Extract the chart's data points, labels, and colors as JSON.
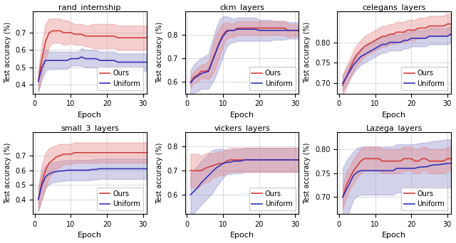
{
  "subplots": [
    {
      "title": "rand_internship",
      "ours_mean": [
        0.42,
        0.55,
        0.65,
        0.7,
        0.71,
        0.71,
        0.71,
        0.7,
        0.7,
        0.7,
        0.69,
        0.69,
        0.69,
        0.68,
        0.68,
        0.68,
        0.68,
        0.68,
        0.68,
        0.68,
        0.68,
        0.68,
        0.67,
        0.67,
        0.67,
        0.67,
        0.67,
        0.67,
        0.67,
        0.67,
        0.67
      ],
      "ours_std": [
        0.06,
        0.09,
        0.1,
        0.08,
        0.07,
        0.07,
        0.07,
        0.07,
        0.07,
        0.06,
        0.06,
        0.06,
        0.06,
        0.06,
        0.06,
        0.07,
        0.07,
        0.07,
        0.07,
        0.07,
        0.07,
        0.07,
        0.07,
        0.07,
        0.07,
        0.07,
        0.07,
        0.07,
        0.07,
        0.07,
        0.07
      ],
      "unif_mean": [
        0.42,
        0.5,
        0.54,
        0.54,
        0.54,
        0.54,
        0.54,
        0.54,
        0.54,
        0.55,
        0.55,
        0.55,
        0.56,
        0.55,
        0.55,
        0.55,
        0.55,
        0.54,
        0.54,
        0.54,
        0.54,
        0.54,
        0.53,
        0.53,
        0.53,
        0.53,
        0.53,
        0.53,
        0.53,
        0.53,
        0.53
      ],
      "unif_std": [
        0.06,
        0.07,
        0.06,
        0.05,
        0.05,
        0.05,
        0.05,
        0.05,
        0.05,
        0.04,
        0.04,
        0.04,
        0.05,
        0.05,
        0.05,
        0.05,
        0.05,
        0.05,
        0.05,
        0.05,
        0.05,
        0.05,
        0.05,
        0.05,
        0.05,
        0.05,
        0.05,
        0.05,
        0.05,
        0.05,
        0.05
      ],
      "ylim": [
        0.35,
        0.82
      ],
      "yticks": [
        0.4,
        0.5,
        0.6,
        0.7
      ]
    },
    {
      "title": "ckm_layers",
      "ours_mean": [
        0.6,
        0.62,
        0.63,
        0.645,
        0.645,
        0.65,
        0.69,
        0.73,
        0.77,
        0.8,
        0.82,
        0.82,
        0.82,
        0.83,
        0.83,
        0.83,
        0.83,
        0.83,
        0.83,
        0.83,
        0.83,
        0.83,
        0.83,
        0.83,
        0.83,
        0.83,
        0.83,
        0.82,
        0.82,
        0.82,
        0.82
      ],
      "ours_std": [
        0.025,
        0.025,
        0.03,
        0.03,
        0.03,
        0.04,
        0.06,
        0.07,
        0.06,
        0.05,
        0.035,
        0.03,
        0.03,
        0.03,
        0.03,
        0.03,
        0.03,
        0.03,
        0.03,
        0.03,
        0.03,
        0.03,
        0.03,
        0.03,
        0.03,
        0.03,
        0.03,
        0.03,
        0.025,
        0.025,
        0.025
      ],
      "unif_mean": [
        0.595,
        0.615,
        0.625,
        0.635,
        0.64,
        0.645,
        0.685,
        0.725,
        0.765,
        0.795,
        0.815,
        0.82,
        0.82,
        0.825,
        0.825,
        0.825,
        0.825,
        0.825,
        0.825,
        0.82,
        0.82,
        0.82,
        0.82,
        0.82,
        0.82,
        0.82,
        0.82,
        0.82,
        0.82,
        0.82,
        0.82
      ],
      "unif_std": [
        0.055,
        0.06,
        0.065,
        0.065,
        0.07,
        0.075,
        0.09,
        0.1,
        0.1,
        0.085,
        0.065,
        0.055,
        0.05,
        0.05,
        0.05,
        0.05,
        0.05,
        0.05,
        0.05,
        0.045,
        0.045,
        0.045,
        0.045,
        0.04,
        0.04,
        0.04,
        0.04,
        0.035,
        0.035,
        0.035,
        0.035
      ],
      "ylim": [
        0.55,
        0.9
      ],
      "yticks": [
        0.6,
        0.7,
        0.8
      ]
    },
    {
      "title": "celegans_layers",
      "ours_mean": [
        0.695,
        0.715,
        0.735,
        0.755,
        0.77,
        0.78,
        0.79,
        0.795,
        0.8,
        0.805,
        0.81,
        0.815,
        0.815,
        0.82,
        0.82,
        0.825,
        0.825,
        0.825,
        0.83,
        0.83,
        0.83,
        0.835,
        0.835,
        0.835,
        0.84,
        0.84,
        0.84,
        0.84,
        0.84,
        0.845,
        0.845
      ],
      "ours_std": [
        0.025,
        0.025,
        0.025,
        0.025,
        0.025,
        0.025,
        0.025,
        0.025,
        0.025,
        0.025,
        0.025,
        0.025,
        0.025,
        0.025,
        0.025,
        0.025,
        0.025,
        0.025,
        0.025,
        0.025,
        0.025,
        0.025,
        0.025,
        0.025,
        0.025,
        0.025,
        0.025,
        0.025,
        0.025,
        0.025,
        0.025
      ],
      "unif_mean": [
        0.7,
        0.715,
        0.73,
        0.745,
        0.755,
        0.765,
        0.77,
        0.775,
        0.78,
        0.785,
        0.79,
        0.795,
        0.795,
        0.8,
        0.8,
        0.8,
        0.8,
        0.805,
        0.805,
        0.81,
        0.81,
        0.81,
        0.81,
        0.81,
        0.815,
        0.815,
        0.815,
        0.815,
        0.815,
        0.815,
        0.82
      ],
      "unif_std": [
        0.02,
        0.02,
        0.02,
        0.02,
        0.02,
        0.02,
        0.02,
        0.02,
        0.02,
        0.02,
        0.02,
        0.02,
        0.02,
        0.02,
        0.02,
        0.02,
        0.02,
        0.02,
        0.02,
        0.02,
        0.02,
        0.02,
        0.02,
        0.02,
        0.02,
        0.02,
        0.02,
        0.02,
        0.02,
        0.02,
        0.02
      ],
      "ylim": [
        0.675,
        0.875
      ],
      "yticks": [
        0.7,
        0.75,
        0.8
      ]
    },
    {
      "title": "small_3_layers",
      "ours_mean": [
        0.4,
        0.52,
        0.6,
        0.65,
        0.67,
        0.69,
        0.7,
        0.71,
        0.71,
        0.71,
        0.72,
        0.72,
        0.72,
        0.72,
        0.72,
        0.72,
        0.72,
        0.72,
        0.72,
        0.72,
        0.72,
        0.72,
        0.72,
        0.72,
        0.72,
        0.72,
        0.72,
        0.72,
        0.72,
        0.72,
        0.72
      ],
      "ours_std": [
        0.08,
        0.12,
        0.12,
        0.1,
        0.09,
        0.08,
        0.08,
        0.07,
        0.07,
        0.07,
        0.07,
        0.07,
        0.07,
        0.07,
        0.07,
        0.07,
        0.07,
        0.07,
        0.07,
        0.07,
        0.07,
        0.07,
        0.07,
        0.07,
        0.07,
        0.07,
        0.07,
        0.07,
        0.07,
        0.07,
        0.07
      ],
      "unif_mean": [
        0.4,
        0.5,
        0.555,
        0.575,
        0.585,
        0.59,
        0.595,
        0.595,
        0.6,
        0.6,
        0.6,
        0.6,
        0.6,
        0.6,
        0.6,
        0.605,
        0.605,
        0.61,
        0.61,
        0.61,
        0.61,
        0.61,
        0.61,
        0.61,
        0.61,
        0.61,
        0.61,
        0.61,
        0.61,
        0.61,
        0.61
      ],
      "unif_std": [
        0.08,
        0.09,
        0.08,
        0.07,
        0.07,
        0.07,
        0.07,
        0.07,
        0.07,
        0.07,
        0.07,
        0.07,
        0.07,
        0.07,
        0.07,
        0.07,
        0.07,
        0.07,
        0.07,
        0.07,
        0.07,
        0.07,
        0.07,
        0.07,
        0.07,
        0.07,
        0.07,
        0.07,
        0.07,
        0.07,
        0.07
      ],
      "ylim": [
        0.3,
        0.86
      ],
      "yticks": [
        0.4,
        0.5,
        0.6,
        0.7
      ]
    },
    {
      "title": "vickers_layers",
      "ours_mean": [
        0.7,
        0.7,
        0.7,
        0.7,
        0.71,
        0.715,
        0.72,
        0.725,
        0.73,
        0.73,
        0.74,
        0.745,
        0.745,
        0.745,
        0.745,
        0.745,
        0.745,
        0.745,
        0.745,
        0.745,
        0.745,
        0.745,
        0.745,
        0.745,
        0.745,
        0.745,
        0.745,
        0.745,
        0.745,
        0.745,
        0.745
      ],
      "ours_std": [
        0.07,
        0.07,
        0.07,
        0.06,
        0.06,
        0.06,
        0.05,
        0.05,
        0.05,
        0.05,
        0.05,
        0.05,
        0.05,
        0.05,
        0.05,
        0.05,
        0.05,
        0.05,
        0.05,
        0.05,
        0.05,
        0.05,
        0.05,
        0.05,
        0.05,
        0.05,
        0.05,
        0.05,
        0.05,
        0.05,
        0.05
      ],
      "unif_mean": [
        0.6,
        0.615,
        0.63,
        0.65,
        0.665,
        0.68,
        0.695,
        0.71,
        0.72,
        0.73,
        0.735,
        0.735,
        0.74,
        0.74,
        0.74,
        0.745,
        0.745,
        0.745,
        0.745,
        0.745,
        0.745,
        0.745,
        0.745,
        0.745,
        0.745,
        0.745,
        0.745,
        0.745,
        0.745,
        0.745,
        0.745
      ],
      "unif_std": [
        0.09,
        0.09,
        0.09,
        0.09,
        0.09,
        0.09,
        0.09,
        0.08,
        0.07,
        0.06,
        0.05,
        0.05,
        0.05,
        0.05,
        0.05,
        0.05,
        0.05,
        0.05,
        0.05,
        0.05,
        0.05,
        0.05,
        0.05,
        0.05,
        0.05,
        0.05,
        0.05,
        0.05,
        0.05,
        0.05,
        0.05
      ],
      "ylim": [
        0.52,
        0.86
      ],
      "yticks": [
        0.6,
        0.7,
        0.8
      ]
    },
    {
      "title": "Lazega_layers",
      "ours_mean": [
        0.7,
        0.725,
        0.74,
        0.755,
        0.765,
        0.775,
        0.78,
        0.78,
        0.78,
        0.78,
        0.78,
        0.775,
        0.775,
        0.775,
        0.775,
        0.775,
        0.775,
        0.78,
        0.78,
        0.78,
        0.775,
        0.775,
        0.78,
        0.78,
        0.775,
        0.775,
        0.775,
        0.775,
        0.775,
        0.78,
        0.78
      ],
      "ours_std": [
        0.025,
        0.025,
        0.025,
        0.025,
        0.025,
        0.025,
        0.025,
        0.025,
        0.025,
        0.025,
        0.025,
        0.025,
        0.025,
        0.025,
        0.025,
        0.025,
        0.025,
        0.025,
        0.025,
        0.025,
        0.025,
        0.025,
        0.025,
        0.025,
        0.025,
        0.025,
        0.025,
        0.025,
        0.025,
        0.025,
        0.025
      ],
      "unif_mean": [
        0.7,
        0.715,
        0.73,
        0.745,
        0.752,
        0.755,
        0.755,
        0.755,
        0.755,
        0.755,
        0.755,
        0.755,
        0.755,
        0.755,
        0.755,
        0.76,
        0.76,
        0.76,
        0.76,
        0.76,
        0.76,
        0.762,
        0.763,
        0.763,
        0.765,
        0.767,
        0.767,
        0.768,
        0.769,
        0.77,
        0.77
      ],
      "unif_std": [
        0.06,
        0.06,
        0.055,
        0.05,
        0.05,
        0.05,
        0.05,
        0.05,
        0.05,
        0.05,
        0.05,
        0.05,
        0.05,
        0.05,
        0.05,
        0.05,
        0.05,
        0.05,
        0.05,
        0.05,
        0.05,
        0.05,
        0.05,
        0.05,
        0.05,
        0.05,
        0.05,
        0.05,
        0.05,
        0.05,
        0.05
      ],
      "ylim": [
        0.665,
        0.835
      ],
      "yticks": [
        0.7,
        0.75,
        0.8
      ]
    }
  ],
  "ours_color": "#d43f3f",
  "unif_color": "#3333bb",
  "ours_fill": "#e88888",
  "unif_fill": "#9090cc",
  "xlabel": "Epoch",
  "ylabel": "Test accuracy (%)",
  "xticks": [
    0,
    10,
    20,
    30
  ],
  "xlim": [
    -0.5,
    31
  ],
  "linewidth": 1.2,
  "fill_alpha": 0.4,
  "grid": true,
  "grid_alpha": 0.4,
  "figsize": [
    6.4,
    3.42
  ],
  "dpi": 100
}
